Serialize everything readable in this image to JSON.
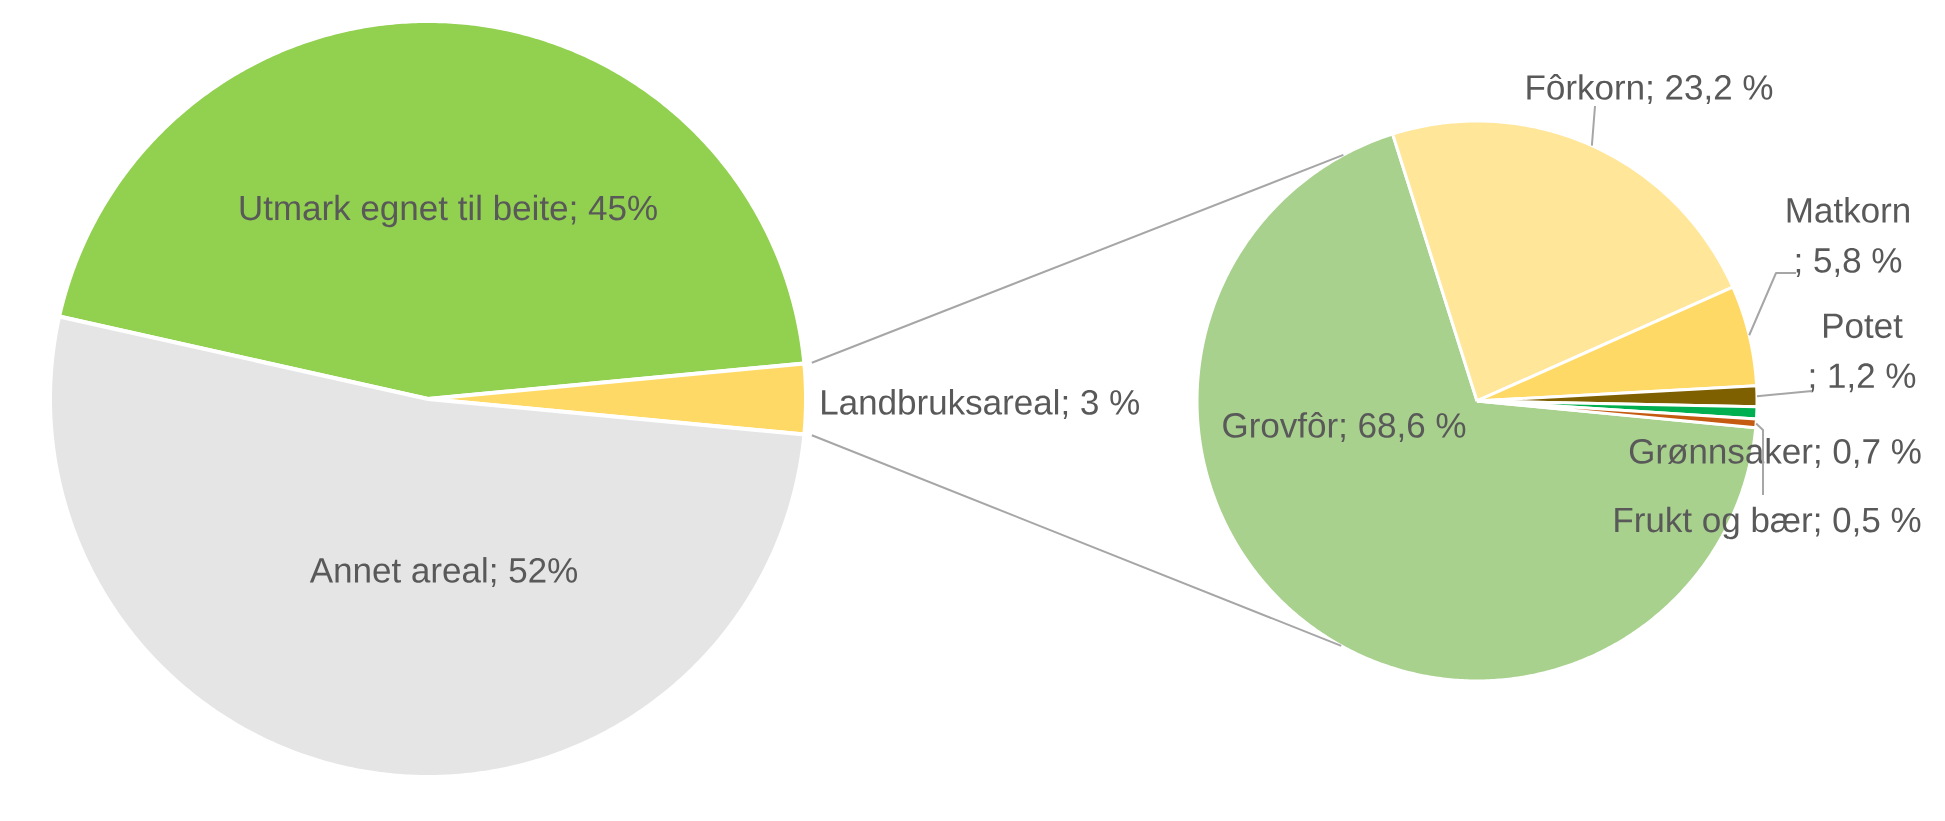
{
  "chart_data": [
    {
      "type": "pie",
      "categories": [
        "Utmark egnet til beite",
        "Landbruksareal",
        "Annet areal"
      ],
      "values": [
        45,
        3,
        52
      ],
      "value_labels": [
        "; 45%",
        "; 3 %",
        "; 52%"
      ],
      "colors": [
        "#92d050",
        "#ffd966",
        "#e5e5e5"
      ]
    },
    {
      "type": "pie",
      "categories": [
        "Grovfôr",
        "Fôrkorn",
        "Matkorn",
        "Potet",
        "Grønnsaker",
        "Frukt og bær"
      ],
      "values": [
        68.6,
        23.2,
        5.8,
        1.2,
        0.7,
        0.5
      ],
      "value_labels": [
        "; 68,6 %",
        "; 23,2 %",
        "; 5,8 %",
        "; 1,2 %",
        "; 0,7 %",
        "; 0,5 %"
      ],
      "colors": [
        "#a9d18e",
        "#ffe699",
        "#ffd966",
        "#7f6000",
        "#00b050",
        "#c55a11"
      ]
    }
  ]
}
